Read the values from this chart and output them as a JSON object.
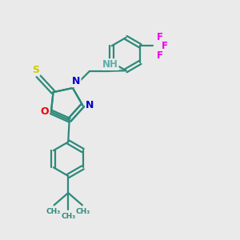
{
  "background_color": "#eaeaea",
  "bond_color": "#2d8a7a",
  "bond_width": 1.6,
  "atom_colors": {
    "C": "#2d8a7a",
    "N": "#0000cc",
    "O": "#ee0000",
    "S": "#cccc00",
    "F": "#ee00ee",
    "H": "#5aafaa"
  },
  "layout": {
    "xlim": [
      0,
      10
    ],
    "ylim": [
      0,
      10
    ]
  }
}
